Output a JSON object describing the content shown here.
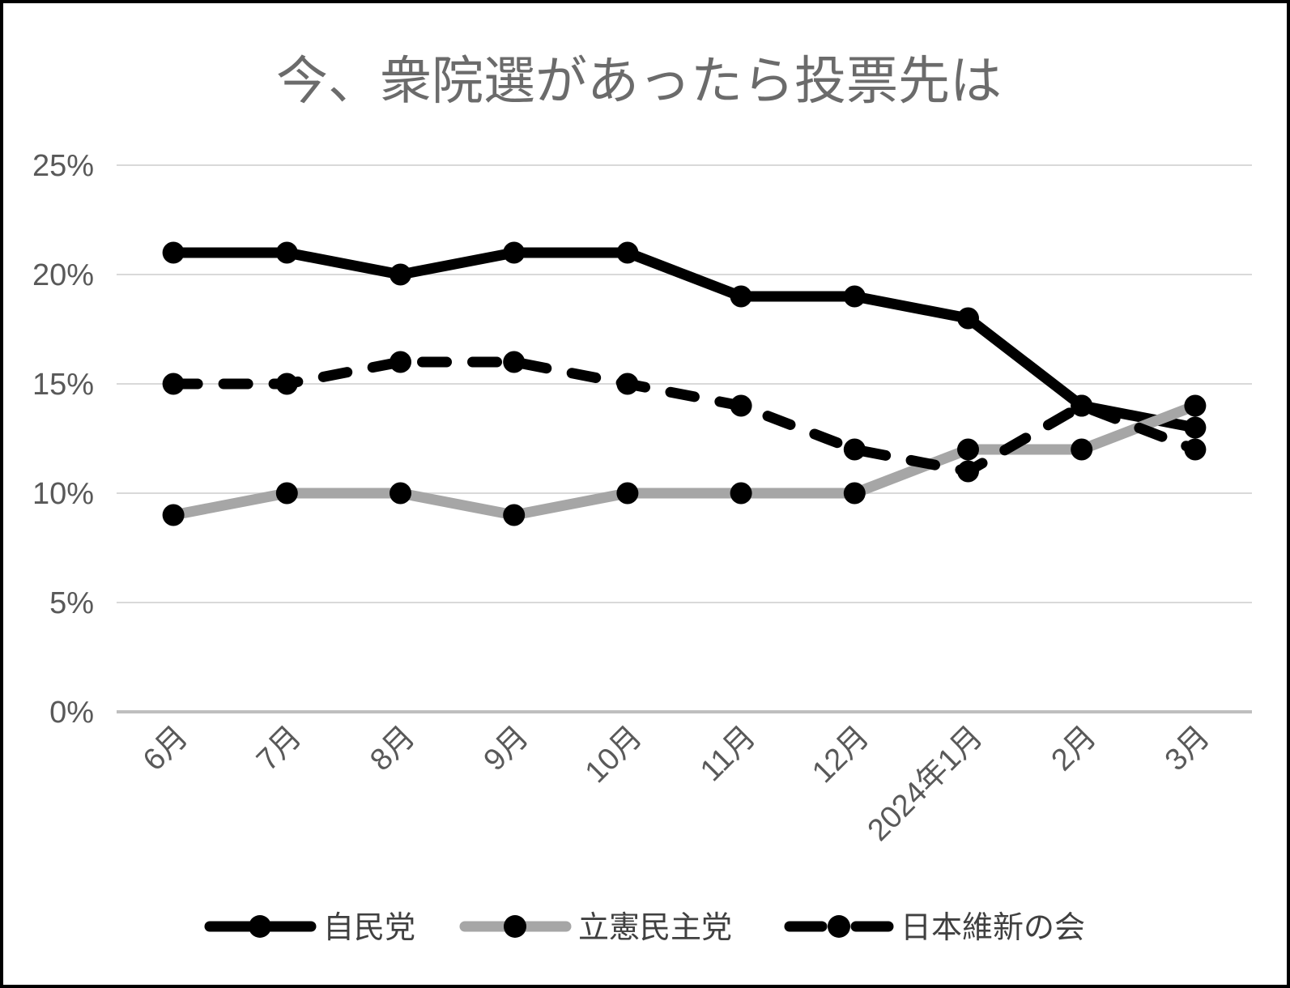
{
  "title": "今、衆院選があったら投票先は",
  "chart_data": {
    "type": "line",
    "title": "今、衆院選があったら投票先は",
    "categories": [
      "6月",
      "7月",
      "8月",
      "9月",
      "10月",
      "11月",
      "12月",
      "2024年1月",
      "2月",
      "3月"
    ],
    "series": [
      {
        "name": "自民党",
        "style": "solid",
        "color": "#000000",
        "values": [
          21,
          21,
          20,
          21,
          21,
          19,
          19,
          18,
          14,
          13
        ]
      },
      {
        "name": "立憲民主党",
        "style": "solid",
        "color": "#a6a6a6",
        "values": [
          9,
          10,
          10,
          9,
          10,
          10,
          10,
          12,
          12,
          14
        ]
      },
      {
        "name": "日本維新の会",
        "style": "dashed",
        "color": "#000000",
        "values": [
          15,
          15,
          16,
          16,
          15,
          14,
          12,
          11,
          14,
          12
        ]
      }
    ],
    "ylim": [
      0,
      25
    ],
    "ytick_step": 5,
    "ytick_labels": [
      "0%",
      "5%",
      "10%",
      "15%",
      "20%",
      "25%"
    ],
    "xlabel": "",
    "ylabel": "",
    "grid": "horizontal",
    "legend_position": "bottom",
    "marker": "filled-black-circle"
  },
  "colors": {
    "background": "#ffffff",
    "border": "#000000",
    "grid_line": "#d9d9d9",
    "axis_line": "#bfbfbf",
    "tick_label": "#595959",
    "title_text": "#6b6b6b",
    "legend_text": "#404040",
    "series_black": "#000000",
    "series_gray": "#a6a6a6"
  }
}
